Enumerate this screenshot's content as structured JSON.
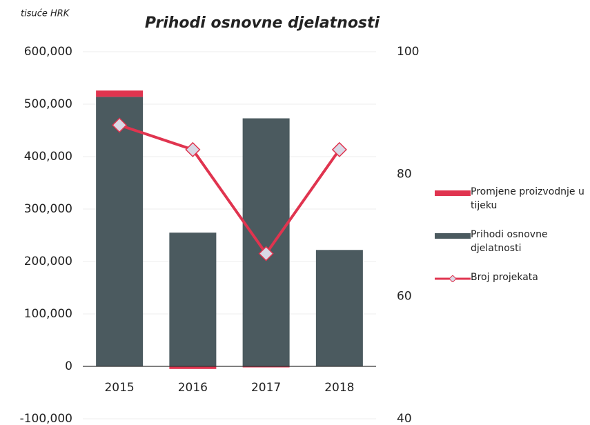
{
  "chart_data": {
    "type": "bar",
    "title": "Prihodi osnovne djelatnosti",
    "y_axis_label": "tisuće HRK",
    "categories": [
      "2015",
      "2016",
      "2017",
      "2018"
    ],
    "series": [
      {
        "name": "Promjene proizvodnje u tijeku",
        "type": "bar",
        "color": "#e0344f",
        "values": [
          12000,
          -5000,
          -2000,
          0
        ]
      },
      {
        "name": "Prihodi osnovne djelatnosti",
        "type": "bar",
        "color": "#4b5a5f",
        "values": [
          514000,
          255000,
          473000,
          222000
        ]
      },
      {
        "name": "Broj projekata",
        "type": "line",
        "axis": "y2",
        "color": "#e0344f",
        "marker_color": "#d9d9e6",
        "values": [
          88,
          84,
          67,
          84
        ]
      }
    ],
    "ylim": [
      -100000,
      600000
    ],
    "yticks": [
      {
        "value": -100000,
        "label": "-100,000"
      },
      0,
      {
        "value": 100000,
        "label": "100,000"
      },
      {
        "value": 200000,
        "label": "200,000"
      },
      {
        "value": 300000,
        "label": "300,000"
      },
      {
        "value": 400000,
        "label": "400,000"
      },
      {
        "value": 500000,
        "label": "500,000"
      },
      {
        "value": 600000,
        "label": "600,000"
      }
    ],
    "y2lim": [
      40,
      100
    ],
    "y2ticks": [
      40,
      60,
      80,
      100
    ],
    "grid": true,
    "legend": "right"
  }
}
